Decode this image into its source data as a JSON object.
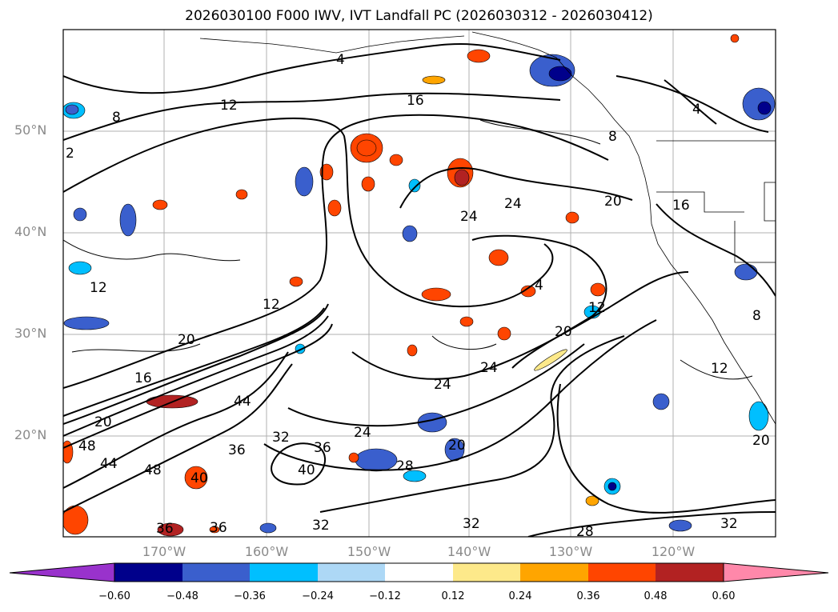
{
  "title": "2026030100 F000 IWV, IVT Landfall PC (2026030312 - 2026030412)",
  "lat_labels": [
    "50°N",
    "40°N",
    "30°N",
    "20°N"
  ],
  "lon_labels": [
    "170°W",
    "160°W",
    "150°W",
    "140°W",
    "130°W",
    "120°W"
  ],
  "colorbar": {
    "ticks": [
      "−0.60",
      "−0.48",
      "−0.36",
      "−0.24",
      "−0.12",
      "0.12",
      "0.24",
      "0.36",
      "0.48",
      "0.60"
    ],
    "colors": [
      "#9932cc",
      "#00008b",
      "#3a5fcd",
      "#00bfff",
      "#add8f6",
      "#ffffff",
      "#fde98a",
      "#ffa500",
      "#ff4500",
      "#b22222",
      "#ff88aa"
    ]
  },
  "contour_labels": [
    "4",
    "12",
    "16",
    "8",
    "2",
    "24",
    "24",
    "20",
    "16",
    "4",
    "12",
    "12",
    "4",
    "12",
    "20",
    "16",
    "44",
    "20",
    "48",
    "44",
    "48",
    "36",
    "32",
    "40",
    "36",
    "24",
    "28",
    "24",
    "24",
    "40",
    "36",
    "32",
    "32",
    "28",
    "32",
    "36",
    "20",
    "12",
    "8",
    "20",
    "20",
    "8"
  ]
}
